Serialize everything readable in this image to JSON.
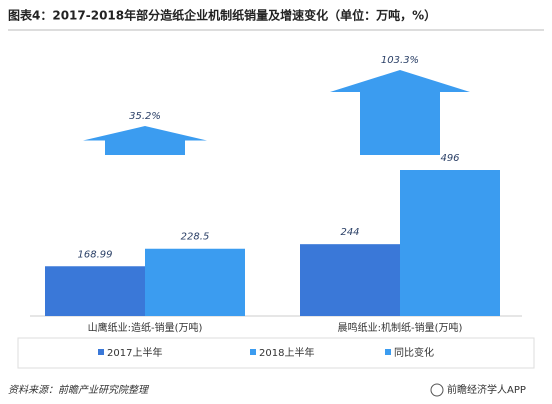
{
  "chart_data": {
    "type": "bar",
    "title": "图表4：2017-2018年部分造纸企业机制纸销量及增速变化（单位：万吨，%）",
    "categories": [
      "山鹰纸业:造纸-销量(万吨)",
      "晨鸣纸业:机制纸-销量(万吨)"
    ],
    "series": [
      {
        "name": "2017上半年",
        "color": "#3a78d8",
        "values": [
          168.99,
          244
        ]
      },
      {
        "name": "2018上半年",
        "color": "#3b9cf0",
        "values": [
          228.5,
          496
        ]
      },
      {
        "name": "同比变化",
        "color": "#3b9cf0",
        "axis": "y2",
        "values": [
          35.2,
          103.3
        ],
        "value_labels": [
          "35.2%",
          "103.3%"
        ]
      }
    ],
    "source": "资料来源：前瞻产业研究院整理",
    "logo": "前瞻经济学人APP"
  }
}
